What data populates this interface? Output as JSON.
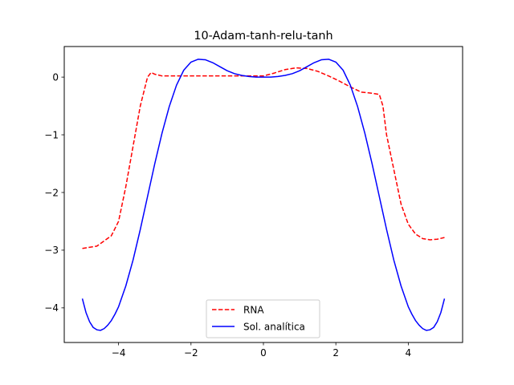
{
  "chart_data": {
    "type": "line",
    "title": "10-Adam-tanh-relu-tanh",
    "xlabel": "",
    "ylabel": "",
    "xlim": [
      -5.5,
      5.5
    ],
    "ylim": [
      -4.6,
      0.53
    ],
    "x_ticks": [
      -4,
      -2,
      0,
      2,
      4
    ],
    "x_tick_labels": [
      "−4",
      "−2",
      "0",
      "2",
      "4"
    ],
    "y_ticks": [
      -4,
      -3,
      -2,
      -1,
      0
    ],
    "y_tick_labels": [
      "−4",
      "−3",
      "−2",
      "−1",
      "0"
    ],
    "grid": false,
    "legend_position": "lower-center",
    "series": [
      {
        "name": "RNA",
        "style": "dashed",
        "color": "#ff0000",
        "x": [
          -5.0,
          -4.6,
          -4.2,
          -4.0,
          -3.8,
          -3.6,
          -3.4,
          -3.2,
          -3.1,
          -3.0,
          -2.8,
          -2.5,
          -2.0,
          -1.5,
          -1.0,
          -0.5,
          0.0,
          0.3,
          0.6,
          0.9,
          1.2,
          1.5,
          1.8,
          2.1,
          2.4,
          2.7,
          3.0,
          3.2,
          3.3,
          3.4,
          3.6,
          3.8,
          4.0,
          4.2,
          4.4,
          4.6,
          4.8,
          5.0
        ],
        "y": [
          -2.97,
          -2.93,
          -2.75,
          -2.5,
          -1.9,
          -1.2,
          -0.5,
          0.0,
          0.08,
          0.05,
          0.02,
          0.02,
          0.02,
          0.02,
          0.02,
          0.02,
          0.02,
          0.07,
          0.13,
          0.16,
          0.15,
          0.1,
          0.02,
          -0.07,
          -0.17,
          -0.26,
          -0.28,
          -0.3,
          -0.5,
          -1.0,
          -1.6,
          -2.2,
          -2.55,
          -2.72,
          -2.8,
          -2.82,
          -2.81,
          -2.78
        ]
      },
      {
        "name": "Sol. analítica",
        "style": "solid",
        "color": "#0000ff",
        "x": [
          -5.0,
          -4.9,
          -4.8,
          -4.7,
          -4.6,
          -4.5,
          -4.4,
          -4.3,
          -4.2,
          -4.1,
          -4.0,
          -3.8,
          -3.6,
          -3.4,
          -3.2,
          -3.0,
          -2.8,
          -2.6,
          -2.4,
          -2.2,
          -2.0,
          -1.8,
          -1.6,
          -1.4,
          -1.2,
          -1.0,
          -0.8,
          -0.6,
          -0.4,
          -0.2,
          0.0,
          0.2,
          0.4,
          0.6,
          0.8,
          1.0,
          1.2,
          1.4,
          1.6,
          1.8,
          2.0,
          2.2,
          2.4,
          2.6,
          2.8,
          3.0,
          3.2,
          3.4,
          3.6,
          3.8,
          4.0,
          4.1,
          4.2,
          4.3,
          4.4,
          4.5,
          4.6,
          4.7,
          4.8,
          4.9,
          5.0
        ],
        "y": [
          -3.84,
          -4.08,
          -4.24,
          -4.34,
          -4.38,
          -4.39,
          -4.36,
          -4.3,
          -4.22,
          -4.11,
          -3.98,
          -3.62,
          -3.17,
          -2.64,
          -2.07,
          -1.5,
          -0.97,
          -0.51,
          -0.14,
          0.12,
          0.26,
          0.31,
          0.3,
          0.25,
          0.18,
          0.11,
          0.06,
          0.03,
          0.01,
          0.0,
          0.0,
          0.0,
          0.01,
          0.03,
          0.06,
          0.11,
          0.18,
          0.25,
          0.3,
          0.31,
          0.26,
          0.12,
          -0.14,
          -0.51,
          -0.97,
          -1.5,
          -2.07,
          -2.64,
          -3.17,
          -3.62,
          -3.98,
          -4.11,
          -4.22,
          -4.3,
          -4.36,
          -4.39,
          -4.38,
          -4.34,
          -4.24,
          -4.08,
          -3.84
        ]
      }
    ]
  }
}
